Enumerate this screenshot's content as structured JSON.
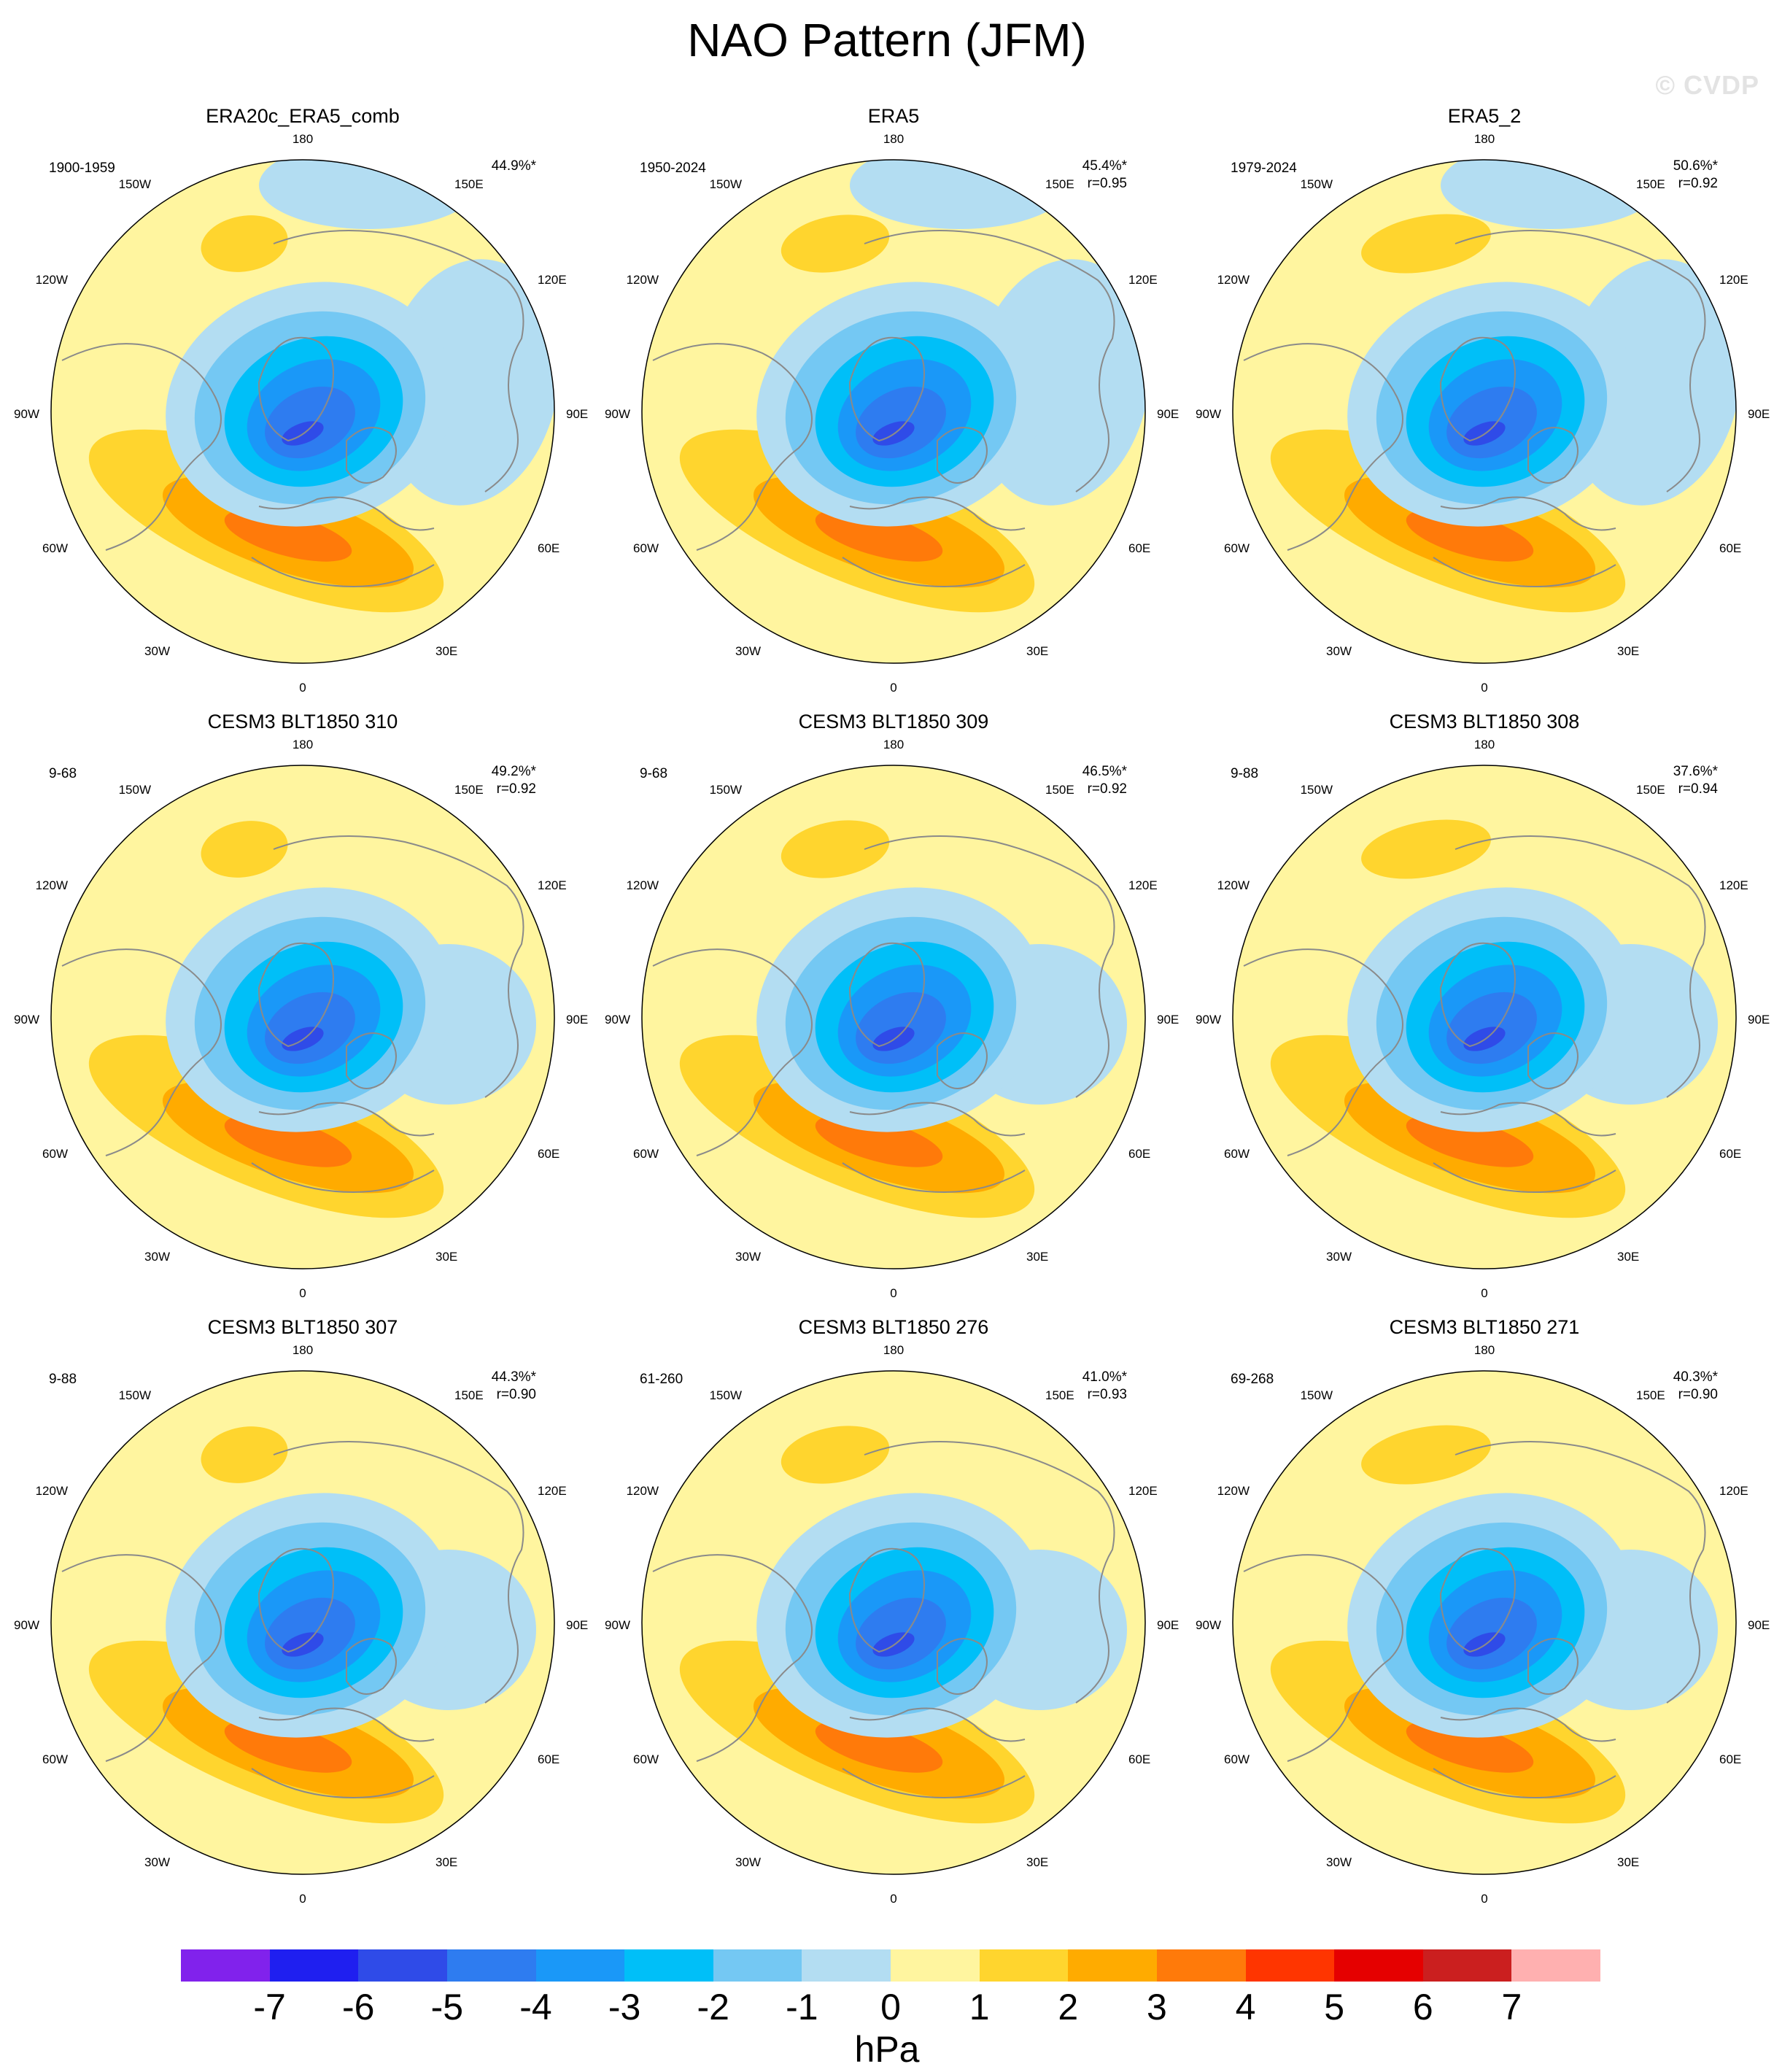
{
  "title": "NAO Pattern (JFM)",
  "watermark": "© CVDP",
  "colors": {
    "levels": [
      "#8122ec",
      "#1f1ff0",
      "#2f4be8",
      "#2e7cf0",
      "#1a98f8",
      "#00bff8",
      "#74c8f3",
      "#b3ddf2",
      "#fff59f",
      "#ffd52e",
      "#ffab00",
      "#ff7a0a",
      "#ff3500",
      "#e50000",
      "#cb1f1f",
      "#ffb0b0"
    ],
    "land_outline": "#8a8a8a"
  },
  "panels": [
    {
      "title": "ERA20c_ERA5_comb",
      "period": "1900-1959",
      "pct": "44.9%*",
      "r": "",
      "type": "obs1"
    },
    {
      "title": "ERA5",
      "period": "1950-2024",
      "pct": "45.4%*",
      "r": "r=0.95",
      "type": "obs"
    },
    {
      "title": "ERA5_2",
      "period": "1979-2024",
      "pct": "50.6%*",
      "r": "r=0.92",
      "type": "obs"
    },
    {
      "title": "CESM3 BLT1850 310",
      "period": "9-68",
      "pct": "49.2%*",
      "r": "r=0.92",
      "type": "model"
    },
    {
      "title": "CESM3 BLT1850 309",
      "period": "9-68",
      "pct": "46.5%*",
      "r": "r=0.92",
      "type": "model"
    },
    {
      "title": "CESM3 BLT1850 308",
      "period": "9-88",
      "pct": "37.6%*",
      "r": "r=0.94",
      "type": "model"
    },
    {
      "title": "CESM3 BLT1850 307",
      "period": "9-88",
      "pct": "44.3%*",
      "r": "r=0.90",
      "type": "model"
    },
    {
      "title": "CESM3 BLT1850 276",
      "period": "61-260",
      "pct": "41.0%*",
      "r": "r=0.93",
      "type": "model"
    },
    {
      "title": "CESM3 BLT1850 271",
      "period": "69-268",
      "pct": "40.3%*",
      "r": "r=0.90",
      "type": "model"
    }
  ],
  "longitude_labels": {
    "top": "180",
    "top_left": "150W",
    "top_right": "150E",
    "upper_left": "120W",
    "upper_right": "120E",
    "left": "90W",
    "right": "90E",
    "lower_left": "60W",
    "lower_right": "60E",
    "bottom_left": "30W",
    "bottom_right": "30E",
    "bottom": "0"
  },
  "colorbar": {
    "labels": [
      "-7",
      "-6",
      "-5",
      "-4",
      "-3",
      "-2",
      "-1",
      "0",
      "1",
      "2",
      "3",
      "4",
      "5",
      "6",
      "7"
    ],
    "units": "hPa"
  }
}
